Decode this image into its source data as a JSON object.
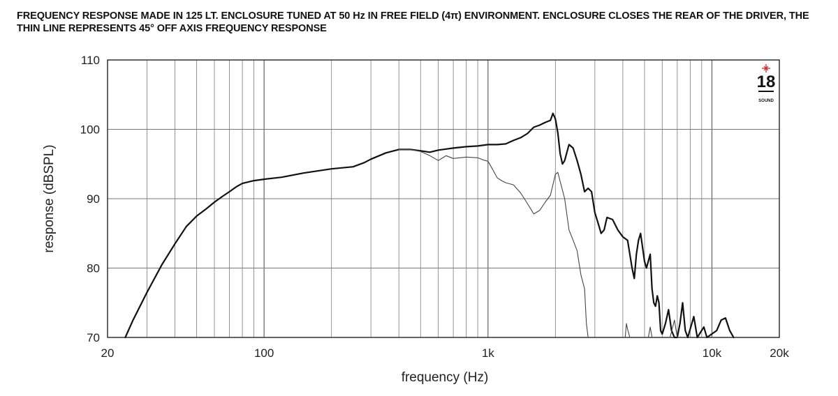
{
  "caption": "FREQUENCY RESPONSE MADE IN 125 LT. ENCLOSURE TUNED AT 50 Hz IN FREE FIELD (4π) ENVIRONMENT. ENCLOSURE CLOSES THE REAR OF THE DRIVER, THE THIN LINE REPRESENTS 45° OFF AXIS FREQUENCY RESPONSE",
  "logo": {
    "number": "18",
    "word": "SOUND",
    "accent": "#d42a2a"
  },
  "chart_data": {
    "type": "line",
    "xlabel": "frequency (Hz)",
    "ylabel": "response (dBSPL)",
    "xscale": "log",
    "xlim": [
      20,
      20000
    ],
    "ylim": [
      70,
      110
    ],
    "grid": true,
    "x_ticks": [
      {
        "value": 20,
        "label": "20"
      },
      {
        "value": 100,
        "label": "100"
      },
      {
        "value": 1000,
        "label": "1k"
      },
      {
        "value": 10000,
        "label": "10k"
      },
      {
        "value": 20000,
        "label": "20k"
      }
    ],
    "y_ticks": [
      {
        "value": 70,
        "label": "70"
      },
      {
        "value": 80,
        "label": "80"
      },
      {
        "value": 90,
        "label": "90"
      },
      {
        "value": 100,
        "label": "100"
      },
      {
        "value": 110,
        "label": "110"
      }
    ],
    "series": [
      {
        "line": "thick",
        "color": "#111111",
        "points": [
          [
            24,
            70
          ],
          [
            26,
            72.5
          ],
          [
            30,
            76.5
          ],
          [
            35,
            80.5
          ],
          [
            40,
            83.5
          ],
          [
            45,
            86
          ],
          [
            50,
            87.5
          ],
          [
            55,
            88.5
          ],
          [
            60,
            89.5
          ],
          [
            65,
            90.3
          ],
          [
            70,
            91
          ],
          [
            75,
            91.7
          ],
          [
            80,
            92.2
          ],
          [
            90,
            92.6
          ],
          [
            100,
            92.8
          ],
          [
            120,
            93.1
          ],
          [
            150,
            93.7
          ],
          [
            200,
            94.3
          ],
          [
            250,
            94.6
          ],
          [
            280,
            95.2
          ],
          [
            300,
            95.7
          ],
          [
            350,
            96.6
          ],
          [
            400,
            97.1
          ],
          [
            450,
            97.1
          ],
          [
            500,
            96.9
          ],
          [
            550,
            96.7
          ],
          [
            600,
            97
          ],
          [
            700,
            97.3
          ],
          [
            800,
            97.5
          ],
          [
            900,
            97.6
          ],
          [
            1000,
            97.8
          ],
          [
            1100,
            97.8
          ],
          [
            1200,
            97.9
          ],
          [
            1300,
            98.4
          ],
          [
            1400,
            98.8
          ],
          [
            1500,
            99.4
          ],
          [
            1600,
            100.3
          ],
          [
            1700,
            100.6
          ],
          [
            1800,
            101
          ],
          [
            1900,
            101.3
          ],
          [
            1950,
            102.3
          ],
          [
            2000,
            101.5
          ],
          [
            2050,
            99.5
          ],
          [
            2100,
            96.5
          ],
          [
            2150,
            95
          ],
          [
            2200,
            95.5
          ],
          [
            2300,
            97.8
          ],
          [
            2400,
            97.3
          ],
          [
            2500,
            95.5
          ],
          [
            2600,
            93.5
          ],
          [
            2700,
            91
          ],
          [
            2800,
            91.5
          ],
          [
            2900,
            91
          ],
          [
            3000,
            88
          ],
          [
            3100,
            86.5
          ],
          [
            3200,
            85
          ],
          [
            3300,
            85.5
          ],
          [
            3400,
            87.3
          ],
          [
            3600,
            87
          ],
          [
            3800,
            85.5
          ],
          [
            4000,
            84.5
          ],
          [
            4200,
            84
          ],
          [
            4400,
            80
          ],
          [
            4500,
            78.5
          ],
          [
            4600,
            82
          ],
          [
            4700,
            84
          ],
          [
            4800,
            85
          ],
          [
            4900,
            83
          ],
          [
            5000,
            81
          ],
          [
            5100,
            80
          ],
          [
            5200,
            81
          ],
          [
            5300,
            82
          ],
          [
            5400,
            77
          ],
          [
            5500,
            75
          ],
          [
            5600,
            74.5
          ],
          [
            5700,
            76
          ],
          [
            5800,
            75
          ],
          [
            5900,
            71
          ],
          [
            6000,
            70.5
          ],
          [
            6200,
            72
          ],
          [
            6400,
            74
          ],
          [
            6600,
            71
          ],
          [
            6800,
            70
          ],
          [
            7000,
            70
          ],
          [
            7200,
            72
          ],
          [
            7400,
            75
          ],
          [
            7600,
            71
          ],
          [
            7800,
            70
          ],
          [
            8300,
            73
          ],
          [
            8600,
            70
          ],
          [
            9200,
            71.5
          ],
          [
            9500,
            70
          ],
          [
            10500,
            71
          ],
          [
            11000,
            72.5
          ],
          [
            11500,
            72.8
          ],
          [
            12000,
            71
          ],
          [
            12500,
            70
          ]
        ]
      },
      {
        "line": "thin",
        "color": "#444444",
        "points": [
          [
            400,
            97.1
          ],
          [
            450,
            97.1
          ],
          [
            500,
            96.8
          ],
          [
            550,
            96.2
          ],
          [
            600,
            95.5
          ],
          [
            650,
            96.2
          ],
          [
            700,
            95.8
          ],
          [
            750,
            95.9
          ],
          [
            800,
            96
          ],
          [
            900,
            95.9
          ],
          [
            950,
            95.6
          ],
          [
            1000,
            95.4
          ],
          [
            1050,
            94.2
          ],
          [
            1100,
            93
          ],
          [
            1150,
            92.6
          ],
          [
            1200,
            92.3
          ],
          [
            1300,
            92
          ],
          [
            1400,
            90.8
          ],
          [
            1500,
            89.3
          ],
          [
            1600,
            87.8
          ],
          [
            1700,
            88.3
          ],
          [
            1800,
            89.5
          ],
          [
            1900,
            90.5
          ],
          [
            2000,
            93.5
          ],
          [
            2050,
            93.8
          ],
          [
            2100,
            92.5
          ],
          [
            2200,
            90
          ],
          [
            2300,
            85.5
          ],
          [
            2400,
            84
          ],
          [
            2500,
            82.5
          ],
          [
            2600,
            79
          ],
          [
            2700,
            77
          ],
          [
            2750,
            72
          ],
          [
            2800,
            70
          ]
        ]
      },
      {
        "line": "thin",
        "color": "#444444",
        "points": [
          [
            4100,
            70
          ],
          [
            4150,
            72
          ],
          [
            4200,
            71.2
          ],
          [
            4300,
            70
          ]
        ]
      },
      {
        "line": "thin",
        "color": "#444444",
        "points": [
          [
            5200,
            70
          ],
          [
            5300,
            71.5
          ],
          [
            5400,
            70
          ]
        ]
      },
      {
        "line": "thin",
        "color": "#444444",
        "points": [
          [
            6500,
            70
          ],
          [
            6800,
            72.5
          ],
          [
            7000,
            70
          ]
        ]
      }
    ]
  }
}
